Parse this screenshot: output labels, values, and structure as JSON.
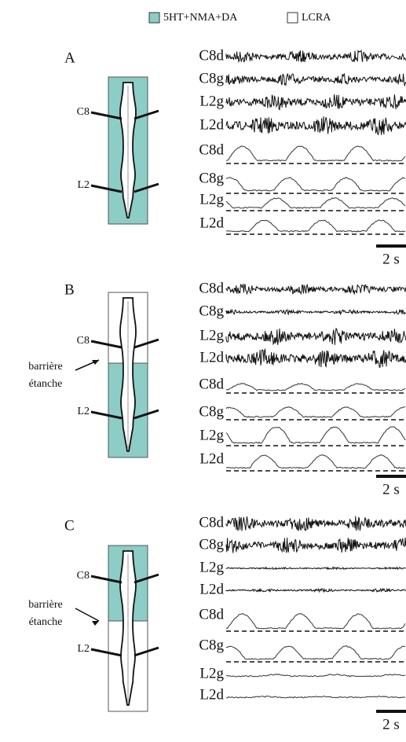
{
  "legend": [
    {
      "label": "5HT+NMA+DA",
      "color": "#8ccdc6"
    },
    {
      "label": "LCRA",
      "color": "#ffffff"
    }
  ],
  "panels": [
    {
      "label": "A",
      "segments": [
        "C8",
        "L2"
      ],
      "raw_traces": [
        "C8d",
        "C8g",
        "L2g",
        "L2d"
      ],
      "integrated_traces": [
        "C8d",
        "C8g",
        "L2g",
        "L2d"
      ],
      "scale_bar": "2 s"
    },
    {
      "label": "B",
      "segments": [
        "C8",
        "L2"
      ],
      "barrier": [
        "barrière",
        "étanche"
      ],
      "raw_traces": [
        "C8d",
        "C8g",
        "L2g",
        "L2d"
      ],
      "integrated_traces": [
        "C8d",
        "C8g",
        "L2g",
        "L2d"
      ],
      "scale_bar": "2 s"
    },
    {
      "label": "C",
      "segments": [
        "C8",
        "L2"
      ],
      "barrier": [
        "barrière",
        "étanche"
      ],
      "raw_traces": [
        "C8d",
        "C8g",
        "L2g",
        "L2d"
      ],
      "integrated_traces": [
        "C8d",
        "C8g",
        "L2g",
        "L2d"
      ],
      "scale_bar": "2 s"
    }
  ]
}
